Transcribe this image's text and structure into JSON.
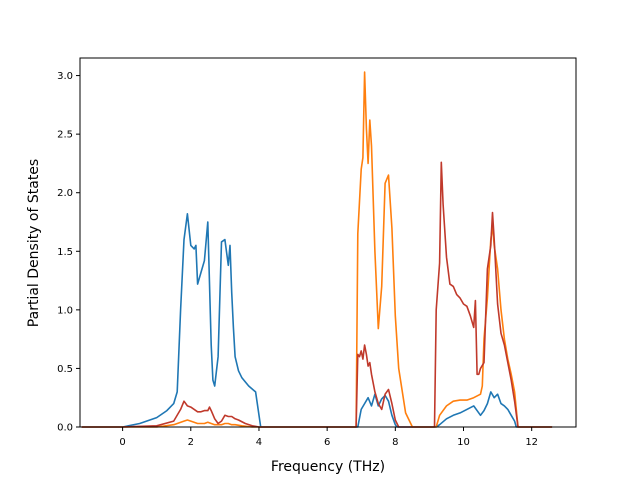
{
  "chart_data": {
    "type": "line",
    "title": "",
    "xlabel": "Frequency (THz)",
    "ylabel": "Partial Density of States",
    "xlim": [
      -1.25,
      13.3
    ],
    "ylim": [
      0,
      3.15
    ],
    "xticks": [
      0,
      2,
      4,
      6,
      8,
      10,
      12
    ],
    "yticks": [
      0.0,
      0.5,
      1.0,
      1.5,
      2.0,
      2.5,
      3.0
    ],
    "xtick_labels": [
      "0",
      "2",
      "4",
      "6",
      "8",
      "10",
      "12"
    ],
    "ytick_labels": [
      "0.0",
      "0.5",
      "1.0",
      "1.5",
      "2.0",
      "2.5",
      "3.0"
    ],
    "grid": false,
    "legend": false,
    "series": [
      {
        "color": "#1f77b4",
        "x": [
          -1.2,
          0.0,
          0.5,
          1.0,
          1.3,
          1.5,
          1.6,
          1.7,
          1.8,
          1.9,
          2.0,
          2.1,
          2.15,
          2.2,
          2.3,
          2.4,
          2.5,
          2.6,
          2.65,
          2.7,
          2.8,
          2.9,
          3.0,
          3.1,
          3.15,
          3.2,
          3.25,
          3.3,
          3.4,
          3.5,
          3.7,
          3.9,
          4.05,
          4.1,
          6.9,
          7.0,
          7.1,
          7.2,
          7.3,
          7.4,
          7.5,
          7.6,
          7.7,
          7.8,
          7.9,
          8.0,
          8.05,
          9.2,
          9.3,
          9.5,
          9.7,
          9.9,
          10.1,
          10.3,
          10.5,
          10.6,
          10.7,
          10.8,
          10.9,
          11.0,
          11.1,
          11.2,
          11.3,
          11.4,
          11.5,
          11.55,
          12.6
        ],
        "y": [
          0.0,
          0.0,
          0.03,
          0.08,
          0.14,
          0.2,
          0.3,
          1.0,
          1.6,
          1.82,
          1.55,
          1.52,
          1.55,
          1.22,
          1.32,
          1.42,
          1.75,
          0.7,
          0.4,
          0.35,
          0.6,
          1.58,
          1.6,
          1.38,
          1.55,
          1.15,
          0.85,
          0.6,
          0.48,
          0.42,
          0.35,
          0.3,
          0.0,
          0.0,
          0.0,
          0.15,
          0.2,
          0.25,
          0.18,
          0.28,
          0.18,
          0.24,
          0.27,
          0.22,
          0.1,
          0.02,
          0.0,
          0.0,
          0.02,
          0.07,
          0.1,
          0.12,
          0.15,
          0.18,
          0.1,
          0.14,
          0.2,
          0.3,
          0.25,
          0.28,
          0.2,
          0.18,
          0.15,
          0.1,
          0.05,
          0.0,
          0.0
        ]
      },
      {
        "color": "#ff7f0e",
        "x": [
          -1.2,
          0.0,
          1.0,
          1.5,
          1.8,
          1.9,
          2.0,
          2.2,
          2.4,
          2.5,
          2.6,
          2.7,
          2.9,
          3.0,
          3.1,
          3.2,
          3.3,
          3.5,
          3.8,
          4.0,
          6.85,
          6.9,
          7.0,
          7.05,
          7.1,
          7.15,
          7.2,
          7.25,
          7.3,
          7.4,
          7.5,
          7.6,
          7.7,
          7.8,
          7.9,
          8.0,
          8.1,
          8.3,
          8.5,
          9.2,
          9.3,
          9.5,
          9.7,
          9.9,
          10.1,
          10.3,
          10.5,
          10.55,
          10.6,
          10.7,
          10.8,
          10.85,
          10.9,
          11.0,
          11.1,
          11.2,
          11.3,
          11.4,
          11.5,
          11.6,
          12.6
        ],
        "y": [
          0.0,
          0.0,
          0.0,
          0.02,
          0.05,
          0.06,
          0.05,
          0.03,
          0.03,
          0.04,
          0.03,
          0.02,
          0.02,
          0.03,
          0.03,
          0.02,
          0.02,
          0.01,
          0.0,
          0.0,
          0.0,
          1.65,
          2.2,
          2.3,
          3.03,
          2.55,
          2.25,
          2.62,
          2.4,
          1.5,
          0.84,
          1.2,
          2.08,
          2.15,
          1.7,
          0.95,
          0.5,
          0.12,
          0.0,
          0.0,
          0.1,
          0.18,
          0.22,
          0.23,
          0.23,
          0.25,
          0.28,
          0.35,
          0.75,
          1.1,
          1.6,
          1.72,
          1.55,
          1.35,
          1.0,
          0.75,
          0.58,
          0.45,
          0.3,
          0.0,
          0.0
        ]
      },
      {
        "color": "#c0392b",
        "x": [
          -1.2,
          0.0,
          1.0,
          1.5,
          1.7,
          1.8,
          1.9,
          2.0,
          2.1,
          2.2,
          2.3,
          2.4,
          2.5,
          2.55,
          2.6,
          2.7,
          2.8,
          2.9,
          3.0,
          3.1,
          3.2,
          3.3,
          3.4,
          3.6,
          3.8,
          4.0,
          6.85,
          6.9,
          6.95,
          7.0,
          7.05,
          7.1,
          7.15,
          7.2,
          7.25,
          7.3,
          7.4,
          7.5,
          7.6,
          7.7,
          7.8,
          7.9,
          8.0,
          8.1,
          9.15,
          9.2,
          9.3,
          9.35,
          9.4,
          9.5,
          9.6,
          9.7,
          9.8,
          9.9,
          10.0,
          10.1,
          10.2,
          10.3,
          10.35,
          10.4,
          10.45,
          10.5,
          10.6,
          10.7,
          10.8,
          10.85,
          10.9,
          11.0,
          11.1,
          11.2,
          11.3,
          11.4,
          11.5,
          11.6,
          12.6
        ],
        "y": [
          0.0,
          0.0,
          0.01,
          0.05,
          0.15,
          0.22,
          0.18,
          0.17,
          0.15,
          0.13,
          0.13,
          0.14,
          0.14,
          0.17,
          0.14,
          0.07,
          0.03,
          0.05,
          0.1,
          0.09,
          0.09,
          0.07,
          0.06,
          0.03,
          0.01,
          0.0,
          0.0,
          0.62,
          0.6,
          0.65,
          0.58,
          0.7,
          0.62,
          0.52,
          0.55,
          0.45,
          0.3,
          0.2,
          0.15,
          0.28,
          0.32,
          0.2,
          0.06,
          0.0,
          0.0,
          1.0,
          1.4,
          2.26,
          1.9,
          1.45,
          1.22,
          1.2,
          1.13,
          1.1,
          1.05,
          1.03,
          0.95,
          0.85,
          1.08,
          0.45,
          0.45,
          0.5,
          0.55,
          1.35,
          1.55,
          1.83,
          1.6,
          1.05,
          0.8,
          0.7,
          0.55,
          0.4,
          0.22,
          0.0,
          0.0
        ]
      }
    ]
  }
}
